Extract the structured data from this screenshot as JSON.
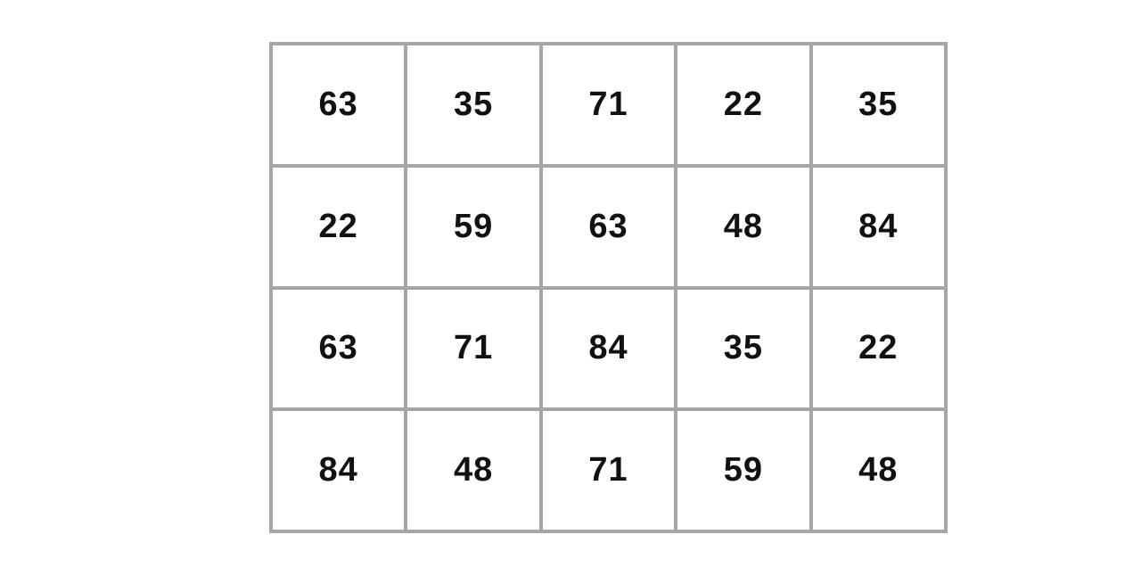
{
  "page": {
    "background_color": "#ffffff"
  },
  "grid": {
    "border_color": "#a6a6a6",
    "cell_background": "#ffffff",
    "text_color": "#111111",
    "columns": 5,
    "row_count": 4,
    "rows": [
      [
        "63",
        "35",
        "71",
        "22",
        "35"
      ],
      [
        "22",
        "59",
        "63",
        "48",
        "84"
      ],
      [
        "63",
        "71",
        "84",
        "35",
        "22"
      ],
      [
        "84",
        "48",
        "71",
        "59",
        "48"
      ]
    ]
  }
}
